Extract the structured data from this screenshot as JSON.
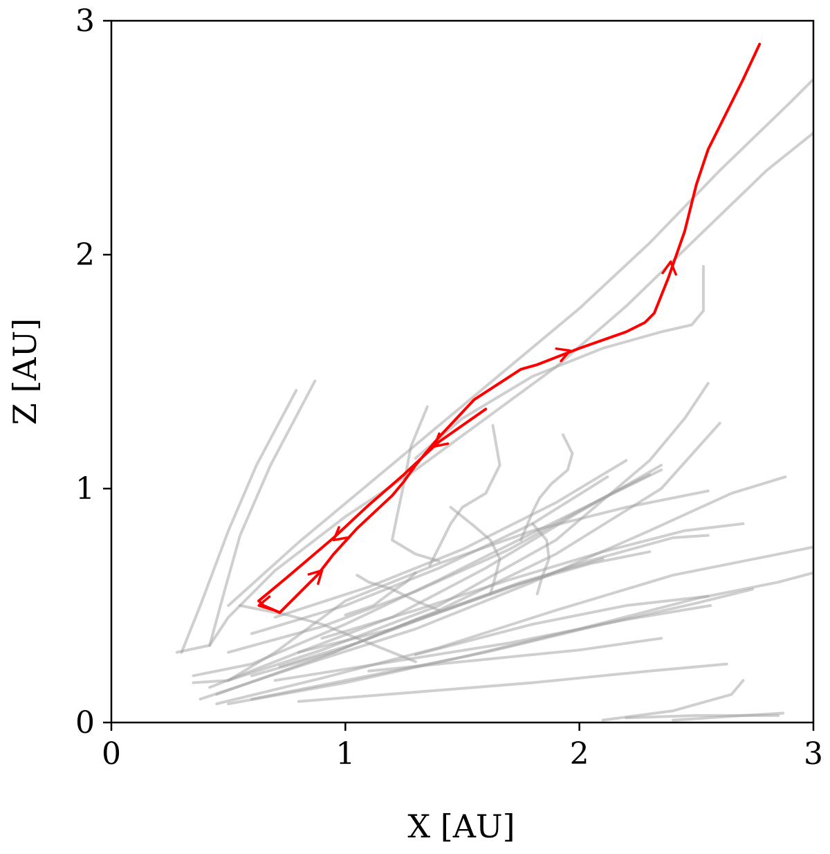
{
  "chart_data": {
    "type": "line",
    "xlabel": "X [AU]",
    "ylabel": "Z [AU]",
    "xlim": [
      0,
      3
    ],
    "ylim": [
      0,
      3
    ],
    "x_ticks": [
      0,
      1,
      2,
      3
    ],
    "y_ticks": [
      0,
      1,
      2,
      3
    ],
    "x_tick_labels": [
      "0",
      "1",
      "2",
      "3"
    ],
    "y_tick_labels": [
      "0",
      "1",
      "2",
      "3"
    ],
    "grid": false,
    "legend": "none",
    "colors": {
      "highlight": "#ff0000",
      "background_tracks": "#a0a0a0",
      "axes": "#000000"
    },
    "highlight_track": {
      "color": "#ff0000",
      "points": [
        [
          2.77,
          2.9
        ],
        [
          2.7,
          2.75
        ],
        [
          2.6,
          2.55
        ],
        [
          2.55,
          2.45
        ],
        [
          2.5,
          2.3
        ],
        [
          2.45,
          2.1
        ],
        [
          2.38,
          1.9
        ],
        [
          2.32,
          1.75
        ],
        [
          2.28,
          1.71
        ],
        [
          2.2,
          1.67
        ],
        [
          2.0,
          1.6
        ],
        [
          1.82,
          1.53
        ],
        [
          1.75,
          1.51
        ],
        [
          1.55,
          1.38
        ],
        [
          1.4,
          1.22
        ],
        [
          1.3,
          1.1
        ],
        [
          1.25,
          1.03
        ],
        [
          1.2,
          0.97
        ],
        [
          1.05,
          0.83
        ],
        [
          0.95,
          0.72
        ],
        [
          0.88,
          0.63
        ],
        [
          0.72,
          0.47
        ],
        [
          0.65,
          0.5
        ],
        [
          0.63,
          0.52
        ],
        [
          0.75,
          0.62
        ],
        [
          0.95,
          0.79
        ],
        [
          1.1,
          0.93
        ],
        [
          1.25,
          1.06
        ],
        [
          1.4,
          1.2
        ],
        [
          1.6,
          1.34
        ]
      ],
      "arrows": [
        {
          "from": [
            2.38,
            1.88
          ],
          "to": [
            2.39,
            1.97
          ]
        },
        {
          "from": [
            1.88,
            1.56
          ],
          "to": [
            1.96,
            1.59
          ]
        },
        {
          "from": [
            1.45,
            1.24
          ],
          "to": [
            1.38,
            1.18
          ]
        },
        {
          "from": [
            1.0,
            0.82
          ],
          "to": [
            0.95,
            0.78
          ]
        },
        {
          "from": [
            0.85,
            0.6
          ],
          "to": [
            0.9,
            0.65
          ]
        },
        {
          "from": [
            0.68,
            0.51
          ],
          "to": [
            0.63,
            0.5
          ]
        }
      ]
    },
    "background_tracks": [
      [
        [
          0.28,
          0.3
        ],
        [
          0.42,
          0.33
        ],
        [
          0.5,
          0.45
        ],
        [
          0.7,
          0.65
        ],
        [
          1.0,
          0.88
        ],
        [
          1.3,
          1.08
        ],
        [
          1.6,
          1.3
        ],
        [
          1.9,
          1.52
        ],
        [
          2.2,
          1.78
        ],
        [
          2.5,
          2.07
        ],
        [
          2.8,
          2.36
        ],
        [
          3.0,
          2.52
        ]
      ],
      [
        [
          0.5,
          0.5
        ],
        [
          0.8,
          0.77
        ],
        [
          1.1,
          1.02
        ],
        [
          1.4,
          1.27
        ],
        [
          1.7,
          1.52
        ],
        [
          2.0,
          1.77
        ],
        [
          2.3,
          2.05
        ],
        [
          2.6,
          2.36
        ],
        [
          2.9,
          2.65
        ],
        [
          3.0,
          2.75
        ]
      ],
      [
        [
          0.3,
          0.3
        ],
        [
          0.38,
          0.5
        ],
        [
          0.5,
          0.82
        ],
        [
          0.62,
          1.1
        ],
        [
          0.79,
          1.42
        ]
      ],
      [
        [
          0.42,
          0.33
        ],
        [
          0.48,
          0.55
        ],
        [
          0.55,
          0.8
        ],
        [
          0.68,
          1.1
        ],
        [
          0.87,
          1.46
        ]
      ],
      [
        [
          2.53,
          1.95
        ],
        [
          2.53,
          1.76
        ],
        [
          2.48,
          1.7
        ],
        [
          2.35,
          1.67
        ],
        [
          2.1,
          1.6
        ],
        [
          1.8,
          1.48
        ],
        [
          1.5,
          1.3
        ],
        [
          1.3,
          1.13
        ]
      ],
      [
        [
          0.5,
          0.18
        ],
        [
          0.9,
          0.31
        ],
        [
          1.4,
          0.5
        ],
        [
          1.9,
          0.78
        ],
        [
          2.3,
          1.12
        ],
        [
          2.45,
          1.3
        ],
        [
          2.55,
          1.45
        ]
      ],
      [
        [
          0.45,
          0.12
        ],
        [
          0.9,
          0.28
        ],
        [
          1.4,
          0.48
        ],
        [
          1.9,
          0.72
        ],
        [
          2.35,
          1.0
        ],
        [
          2.6,
          1.28
        ]
      ],
      [
        [
          0.42,
          0.15
        ],
        [
          0.8,
          0.3
        ],
        [
          1.2,
          0.45
        ],
        [
          1.6,
          0.66
        ],
        [
          2.0,
          0.9
        ],
        [
          2.35,
          1.1
        ]
      ],
      [
        [
          0.38,
          0.1
        ],
        [
          0.8,
          0.24
        ],
        [
          1.3,
          0.4
        ],
        [
          1.8,
          0.6
        ],
        [
          2.3,
          0.82
        ],
        [
          2.65,
          0.98
        ],
        [
          2.88,
          1.05
        ]
      ],
      [
        [
          0.45,
          0.08
        ],
        [
          0.9,
          0.19
        ],
        [
          1.4,
          0.32
        ],
        [
          1.9,
          0.48
        ],
        [
          2.4,
          0.63
        ],
        [
          2.9,
          0.73
        ],
        [
          3.0,
          0.75
        ]
      ],
      [
        [
          0.5,
          0.08
        ],
        [
          1.0,
          0.17
        ],
        [
          1.5,
          0.28
        ],
        [
          2.0,
          0.4
        ],
        [
          2.5,
          0.53
        ],
        [
          2.85,
          0.6
        ],
        [
          3.0,
          0.64
        ]
      ],
      [
        [
          0.6,
          0.1
        ],
        [
          1.1,
          0.2
        ],
        [
          1.6,
          0.3
        ],
        [
          2.1,
          0.42
        ],
        [
          2.5,
          0.51
        ],
        [
          2.74,
          0.57
        ]
      ],
      [
        [
          0.7,
          0.18
        ],
        [
          1.2,
          0.26
        ],
        [
          1.7,
          0.34
        ],
        [
          2.2,
          0.44
        ],
        [
          2.56,
          0.5
        ]
      ],
      [
        [
          0.8,
          0.09
        ],
        [
          1.3,
          0.13
        ],
        [
          1.8,
          0.17
        ],
        [
          2.3,
          0.22
        ],
        [
          2.63,
          0.25
        ]
      ],
      [
        [
          1.1,
          0.22
        ],
        [
          1.6,
          0.27
        ],
        [
          2.0,
          0.31
        ],
        [
          2.35,
          0.36
        ]
      ],
      [
        [
          1.3,
          0.29
        ],
        [
          1.8,
          0.42
        ],
        [
          2.2,
          0.5
        ],
        [
          2.55,
          0.54
        ]
      ],
      [
        [
          0.35,
          0.17
        ],
        [
          0.5,
          0.18
        ],
        [
          0.7,
          0.3
        ],
        [
          1.0,
          0.52
        ],
        [
          1.4,
          0.68
        ],
        [
          1.8,
          0.82
        ],
        [
          2.2,
          0.92
        ],
        [
          2.55,
          0.99
        ]
      ],
      [
        [
          0.35,
          0.2
        ],
        [
          0.6,
          0.25
        ],
        [
          1.0,
          0.42
        ],
        [
          1.4,
          0.61
        ],
        [
          1.9,
          0.86
        ],
        [
          2.35,
          1.08
        ]
      ],
      [
        [
          0.5,
          0.3
        ],
        [
          0.9,
          0.41
        ],
        [
          1.3,
          0.56
        ],
        [
          1.7,
          0.74
        ],
        [
          2.1,
          0.96
        ],
        [
          2.3,
          1.06
        ]
      ],
      [
        [
          0.6,
          0.38
        ],
        [
          1.0,
          0.5
        ],
        [
          1.4,
          0.66
        ],
        [
          1.8,
          0.85
        ],
        [
          2.12,
          1.05
        ]
      ],
      [
        [
          0.7,
          0.45
        ],
        [
          1.1,
          0.58
        ],
        [
          1.5,
          0.74
        ],
        [
          1.9,
          0.94
        ],
        [
          2.2,
          1.12
        ]
      ],
      [
        [
          0.8,
          0.3
        ],
        [
          1.2,
          0.4
        ],
        [
          1.6,
          0.54
        ],
        [
          2.0,
          0.68
        ],
        [
          2.4,
          0.79
        ],
        [
          2.55,
          0.8
        ]
      ],
      [
        [
          0.9,
          0.36
        ],
        [
          1.3,
          0.48
        ],
        [
          1.7,
          0.61
        ],
        [
          2.1,
          0.73
        ],
        [
          2.45,
          0.82
        ],
        [
          2.7,
          0.85
        ]
      ],
      [
        [
          0.6,
          0.2
        ],
        [
          0.95,
          0.3
        ],
        [
          1.3,
          0.44
        ],
        [
          1.7,
          0.58
        ],
        [
          2.05,
          0.68
        ],
        [
          2.3,
          0.73
        ]
      ],
      [
        [
          0.72,
          0.24
        ],
        [
          1.05,
          0.34
        ],
        [
          1.4,
          0.47
        ],
        [
          1.75,
          0.6
        ],
        [
          2.1,
          0.7
        ]
      ],
      [
        [
          1.35,
          1.35
        ],
        [
          1.28,
          1.18
        ],
        [
          1.25,
          1.02
        ],
        [
          1.22,
          0.88
        ],
        [
          1.2,
          0.78
        ],
        [
          1.3,
          0.72
        ],
        [
          1.4,
          0.69
        ]
      ],
      [
        [
          1.63,
          1.27
        ],
        [
          1.66,
          1.1
        ],
        [
          1.6,
          0.98
        ],
        [
          1.5,
          0.92
        ],
        [
          1.45,
          0.85
        ],
        [
          1.4,
          0.75
        ],
        [
          1.36,
          0.67
        ]
      ],
      [
        [
          1.93,
          1.23
        ],
        [
          1.97,
          1.15
        ],
        [
          1.95,
          1.08
        ],
        [
          1.88,
          1.02
        ],
        [
          1.83,
          0.96
        ],
        [
          1.8,
          0.9
        ],
        [
          1.75,
          0.78
        ]
      ],
      [
        [
          1.05,
          0.63
        ],
        [
          1.1,
          0.6
        ],
        [
          1.2,
          0.57
        ],
        [
          1.3,
          0.52
        ],
        [
          1.4,
          0.48
        ]
      ],
      [
        [
          1.45,
          0.92
        ],
        [
          1.55,
          0.84
        ],
        [
          1.62,
          0.78
        ],
        [
          1.66,
          0.7
        ],
        [
          1.64,
          0.62
        ],
        [
          1.62,
          0.55
        ]
      ],
      [
        [
          1.8,
          0.85
        ],
        [
          1.86,
          0.78
        ],
        [
          1.87,
          0.7
        ],
        [
          1.84,
          0.62
        ],
        [
          1.82,
          0.55
        ]
      ],
      [
        [
          0.55,
          0.5
        ],
        [
          0.75,
          0.46
        ],
        [
          0.9,
          0.42
        ],
        [
          1.05,
          0.36
        ],
        [
          1.2,
          0.3
        ],
        [
          1.3,
          0.26
        ]
      ],
      [
        [
          1.0,
          0.46
        ],
        [
          1.12,
          0.5
        ],
        [
          1.2,
          0.56
        ],
        [
          1.26,
          0.6
        ],
        [
          1.3,
          0.64
        ]
      ],
      [
        [
          2.1,
          0.01
        ],
        [
          2.4,
          0.05
        ],
        [
          2.65,
          0.12
        ],
        [
          2.7,
          0.18
        ]
      ],
      [
        [
          2.2,
          0.02
        ],
        [
          2.5,
          0.03
        ],
        [
          2.85,
          0.03
        ]
      ],
      [
        [
          2.4,
          0.01
        ],
        [
          2.7,
          0.03
        ],
        [
          2.87,
          0.04
        ]
      ]
    ]
  }
}
